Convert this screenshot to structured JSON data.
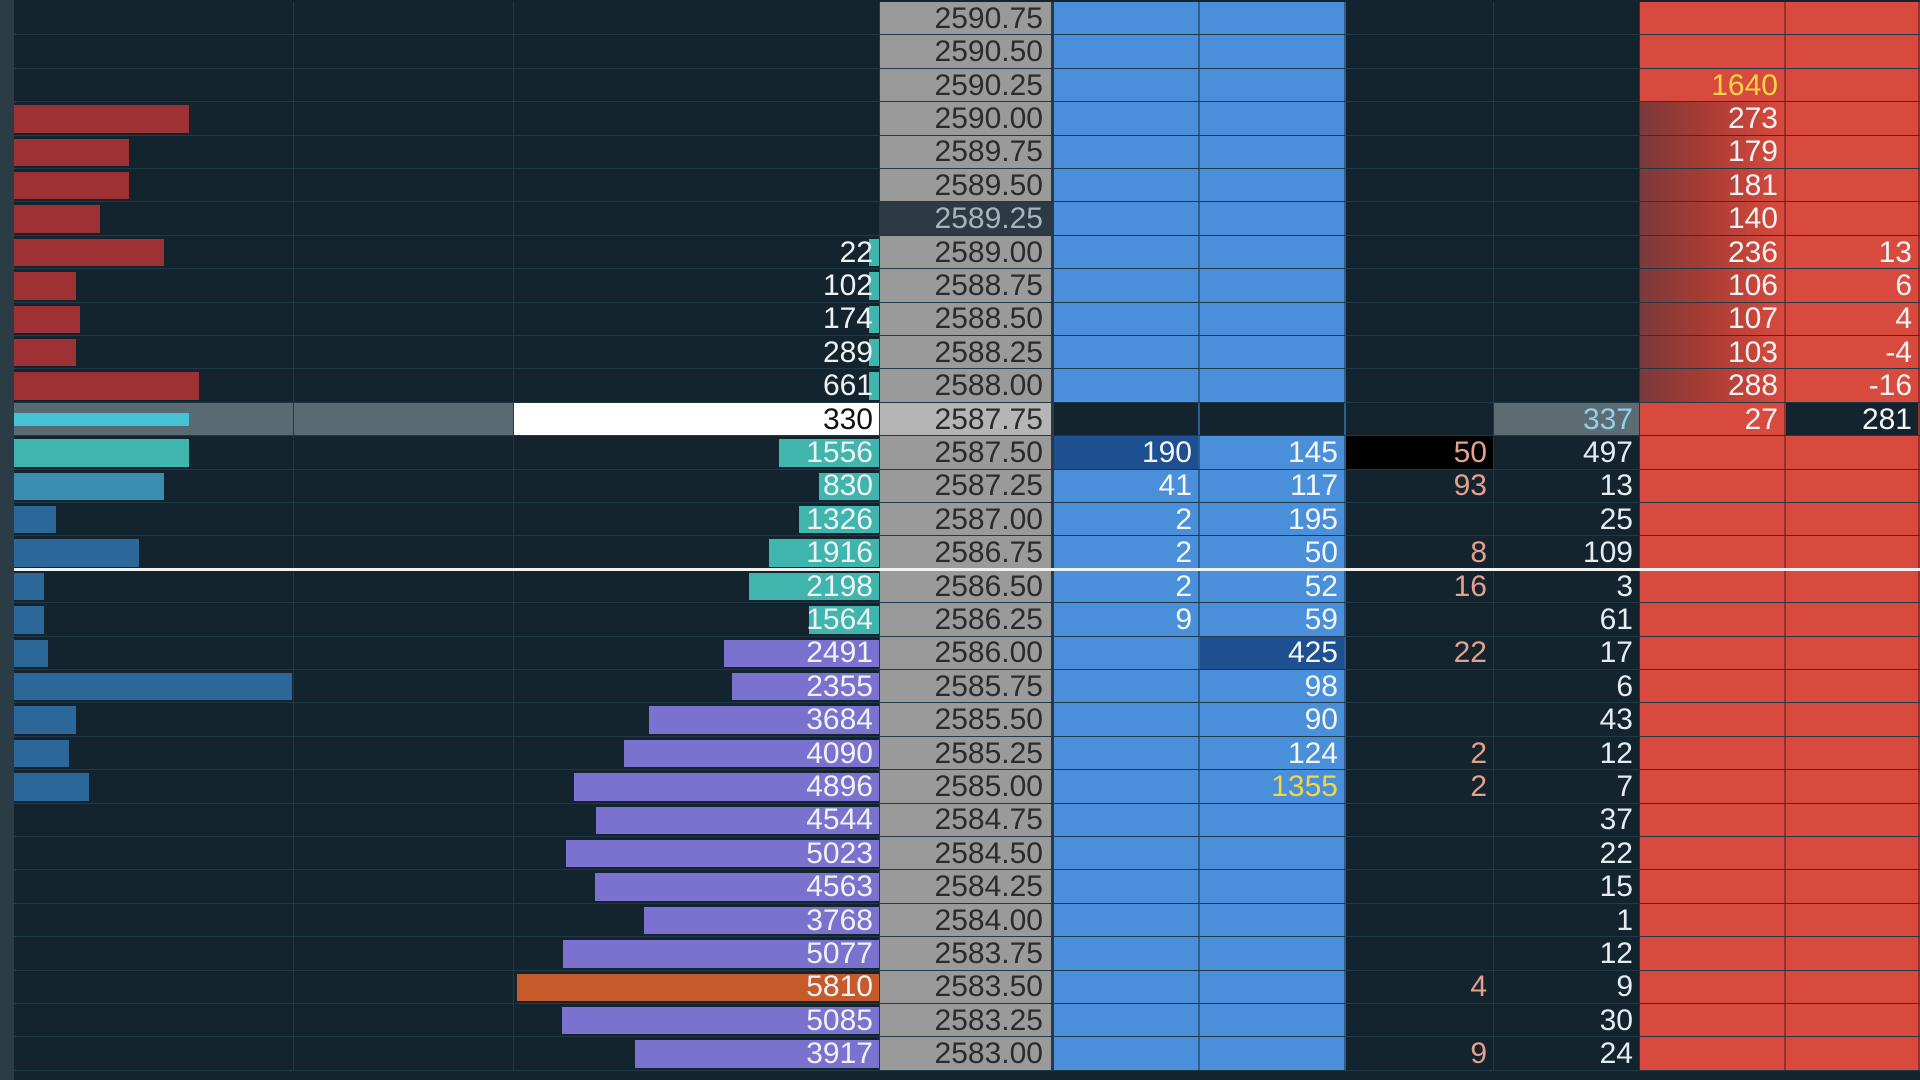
{
  "colors": {
    "background": "#13242f",
    "grid_line": "#1f3947",
    "price_column": "#9a9a9a",
    "bid_column": "#4a8fd9",
    "ask_column": "#d94a3e",
    "volume_profile": "#7b71cf",
    "poc_highlight": "#c65a2a",
    "left_sell_bar": "#9e3134",
    "left_buy_bar": "#2c6799",
    "teal_bar": "#3fb5ae",
    "yellow_text": "#f3d646"
  },
  "rows": [
    {
      "price": "2590.75",
      "volume": "",
      "bid": "",
      "bid2": "",
      "delta": "",
      "trades": "",
      "ask": "",
      "ask2": ""
    },
    {
      "price": "2590.50",
      "volume": "",
      "bid": "",
      "bid2": "",
      "delta": "",
      "trades": "",
      "ask": "",
      "ask2": ""
    },
    {
      "price": "2590.25",
      "volume": "",
      "bid": "",
      "bid2": "",
      "delta": "",
      "trades": "",
      "ask": "1640",
      "ask2": ""
    },
    {
      "price": "2590.00",
      "volume": "",
      "bid": "",
      "bid2": "",
      "delta": "",
      "trades": "",
      "ask": "273",
      "ask2": ""
    },
    {
      "price": "2589.75",
      "volume": "",
      "bid": "",
      "bid2": "",
      "delta": "",
      "trades": "",
      "ask": "179",
      "ask2": ""
    },
    {
      "price": "2589.50",
      "volume": "",
      "bid": "",
      "bid2": "",
      "delta": "",
      "trades": "",
      "ask": "181",
      "ask2": ""
    },
    {
      "price": "2589.25",
      "volume": "",
      "bid": "",
      "bid2": "",
      "delta": "",
      "trades": "",
      "ask": "140",
      "ask2": ""
    },
    {
      "price": "2589.00",
      "volume": "22",
      "bid": "",
      "bid2": "",
      "delta": "",
      "trades": "",
      "ask": "236",
      "ask2": "13"
    },
    {
      "price": "2588.75",
      "volume": "102",
      "bid": "",
      "bid2": "",
      "delta": "",
      "trades": "",
      "ask": "106",
      "ask2": "6"
    },
    {
      "price": "2588.50",
      "volume": "174",
      "bid": "",
      "bid2": "",
      "delta": "",
      "trades": "",
      "ask": "107",
      "ask2": "4"
    },
    {
      "price": "2588.25",
      "volume": "289",
      "bid": "",
      "bid2": "",
      "delta": "",
      "trades": "",
      "ask": "103",
      "ask2": "-4"
    },
    {
      "price": "2588.00",
      "volume": "661",
      "bid": "",
      "bid2": "",
      "delta": "",
      "trades": "",
      "ask": "288",
      "ask2": "-16"
    },
    {
      "price": "2587.75",
      "volume": "330",
      "bid": "",
      "bid2": "",
      "delta": "",
      "trades": "337",
      "ask": "27",
      "ask2": "281"
    },
    {
      "price": "2587.50",
      "volume": "1556",
      "bid": "190",
      "bid2": "145",
      "delta": "50",
      "trades": "497",
      "ask": "",
      "ask2": ""
    },
    {
      "price": "2587.25",
      "volume": "830",
      "bid": "41",
      "bid2": "117",
      "delta": "93",
      "trades": "13",
      "ask": "",
      "ask2": ""
    },
    {
      "price": "2587.00",
      "volume": "1326",
      "bid": "2",
      "bid2": "195",
      "delta": "",
      "trades": "25",
      "ask": "",
      "ask2": ""
    },
    {
      "price": "2586.75",
      "volume": "1916",
      "bid": "2",
      "bid2": "50",
      "delta": "8",
      "trades": "109",
      "ask": "",
      "ask2": ""
    },
    {
      "price": "2586.50",
      "volume": "2198",
      "bid": "2",
      "bid2": "52",
      "delta": "16",
      "trades": "3",
      "ask": "",
      "ask2": ""
    },
    {
      "price": "2586.25",
      "volume": "1564",
      "bid": "9",
      "bid2": "59",
      "delta": "",
      "trades": "61",
      "ask": "",
      "ask2": ""
    },
    {
      "price": "2586.00",
      "volume": "2491",
      "bid": "",
      "bid2": "425",
      "delta": "22",
      "trades": "17",
      "ask": "",
      "ask2": ""
    },
    {
      "price": "2585.75",
      "volume": "2355",
      "bid": "",
      "bid2": "98",
      "delta": "",
      "trades": "6",
      "ask": "",
      "ask2": ""
    },
    {
      "price": "2585.50",
      "volume": "3684",
      "bid": "",
      "bid2": "90",
      "delta": "",
      "trades": "43",
      "ask": "",
      "ask2": ""
    },
    {
      "price": "2585.25",
      "volume": "4090",
      "bid": "",
      "bid2": "124",
      "delta": "2",
      "trades": "12",
      "ask": "",
      "ask2": ""
    },
    {
      "price": "2585.00",
      "volume": "4896",
      "bid": "",
      "bid2": "1355",
      "delta": "2",
      "trades": "7",
      "ask": "",
      "ask2": ""
    },
    {
      "price": "2584.75",
      "volume": "4544",
      "bid": "",
      "bid2": "",
      "delta": "",
      "trades": "37",
      "ask": "",
      "ask2": ""
    },
    {
      "price": "2584.50",
      "volume": "5023",
      "bid": "",
      "bid2": "",
      "delta": "",
      "trades": "22",
      "ask": "",
      "ask2": ""
    },
    {
      "price": "2584.25",
      "volume": "4563",
      "bid": "",
      "bid2": "",
      "delta": "",
      "trades": "15",
      "ask": "",
      "ask2": ""
    },
    {
      "price": "2584.00",
      "volume": "3768",
      "bid": "",
      "bid2": "",
      "delta": "",
      "trades": "1",
      "ask": "",
      "ask2": ""
    },
    {
      "price": "2583.75",
      "volume": "5077",
      "bid": "",
      "bid2": "",
      "delta": "",
      "trades": "12",
      "ask": "",
      "ask2": ""
    },
    {
      "price": "2583.50",
      "volume": "5810",
      "bid": "",
      "bid2": "",
      "delta": "4",
      "trades": "9",
      "ask": "",
      "ask2": ""
    },
    {
      "price": "2583.25",
      "volume": "5085",
      "bid": "",
      "bid2": "",
      "delta": "",
      "trades": "30",
      "ask": "",
      "ask2": ""
    },
    {
      "price": "2583.00",
      "volume": "3917",
      "bid": "",
      "bid2": "",
      "delta": "9",
      "trades": "24",
      "ask": "",
      "ask2": ""
    }
  ]
}
